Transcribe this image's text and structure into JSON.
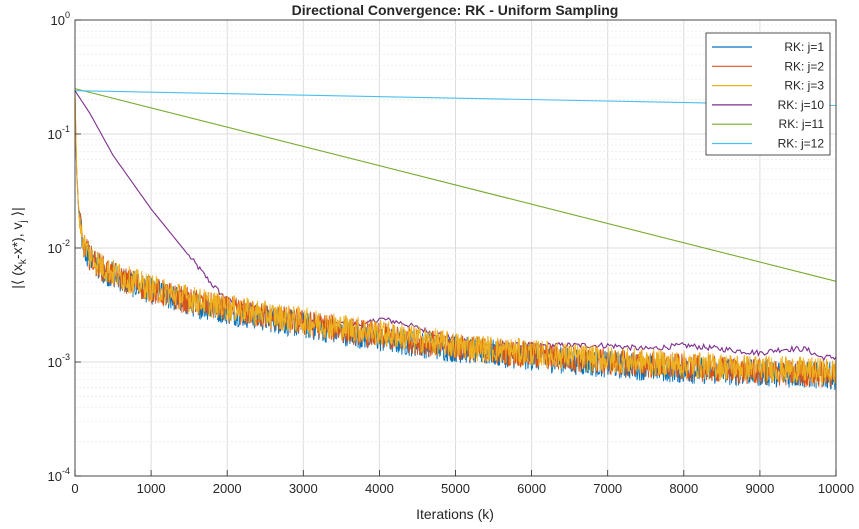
{
  "chart_data": {
    "type": "line",
    "title": "Directional Convergence: RK - Uniform Sampling",
    "xlabel": "Iterations (k)",
    "ylabel_parts": [
      "|⟨ (x",
      "k",
      "-x*), v",
      "j",
      " ⟩|"
    ],
    "xlim": [
      0,
      10000
    ],
    "ylim": [
      0.0001,
      1
    ],
    "yscale": "log",
    "grid": true,
    "legend_position": "top-right",
    "x_ticks": [
      "0",
      "1000",
      "2000",
      "3000",
      "4000",
      "5000",
      "6000",
      "7000",
      "8000",
      "9000",
      "10000"
    ],
    "y_ticks": [
      {
        "base": "10",
        "exp": "0",
        "value": 1
      },
      {
        "base": "10",
        "exp": "-1",
        "value": 0.1
      },
      {
        "base": "10",
        "exp": "-2",
        "value": 0.01
      },
      {
        "base": "10",
        "exp": "-3",
        "value": 0.001
      },
      {
        "base": "10",
        "exp": "-4",
        "value": 0.0001
      }
    ],
    "series": [
      {
        "name": "RK: j=1",
        "color": "#0072BD",
        "x": [
          0,
          20,
          50,
          100,
          200,
          400,
          700,
          1000,
          1500,
          2000,
          3000,
          4000,
          5000,
          6000,
          7000,
          8000,
          9000,
          10000
        ],
        "y": [
          0.2,
          0.05,
          0.02,
          0.011,
          0.008,
          0.0062,
          0.005,
          0.0042,
          0.0033,
          0.0028,
          0.0021,
          0.0016,
          0.0013,
          0.0011,
          0.00095,
          0.00085,
          0.0008,
          0.00075
        ]
      },
      {
        "name": "RK: j=2",
        "color": "#D95319",
        "x": [
          0,
          20,
          50,
          100,
          200,
          400,
          700,
          1000,
          1500,
          2000,
          3000,
          4000,
          5000,
          6000,
          7000,
          8000,
          9000,
          10000
        ],
        "y": [
          0.22,
          0.05,
          0.02,
          0.011,
          0.0082,
          0.0063,
          0.0051,
          0.0043,
          0.0034,
          0.0029,
          0.0022,
          0.0017,
          0.00135,
          0.00115,
          0.001,
          0.0009,
          0.00082,
          0.00077
        ]
      },
      {
        "name": "RK: j=3",
        "color": "#EDB120",
        "x": [
          0,
          20,
          50,
          100,
          200,
          400,
          700,
          1000,
          1500,
          2000,
          3000,
          4000,
          5000,
          6000,
          7000,
          8000,
          9000,
          10000
        ],
        "y": [
          0.24,
          0.055,
          0.021,
          0.0115,
          0.0085,
          0.0065,
          0.0053,
          0.0045,
          0.0036,
          0.003,
          0.0023,
          0.0018,
          0.0014,
          0.0012,
          0.00105,
          0.00095,
          0.00088,
          0.00082
        ]
      },
      {
        "name": "RK: j=10",
        "color": "#7E2F8E",
        "x": [
          0,
          200,
          500,
          1000,
          1500,
          1800,
          2000,
          2300,
          2600,
          3000,
          3500,
          3800,
          4000,
          4300,
          4700,
          5000,
          5500,
          6000,
          6500,
          7000,
          7500,
          8000,
          8500,
          9000,
          9300,
          9600,
          9800,
          10000
        ],
        "y": [
          0.24,
          0.15,
          0.065,
          0.022,
          0.0085,
          0.0048,
          0.0035,
          0.003,
          0.0027,
          0.0022,
          0.0022,
          0.0021,
          0.0024,
          0.0022,
          0.0018,
          0.0016,
          0.0014,
          0.0014,
          0.0014,
          0.0014,
          0.0013,
          0.0014,
          0.0013,
          0.0012,
          0.0013,
          0.0013,
          0.0011,
          0.0011
        ]
      },
      {
        "name": "RK: j=11",
        "color": "#77AC30",
        "x": [
          0,
          10000
        ],
        "y": [
          0.25,
          0.0051
        ]
      },
      {
        "name": "RK: j=12",
        "color": "#4DBEEE",
        "x": [
          0,
          10000
        ],
        "y": [
          0.24,
          0.178
        ]
      }
    ]
  }
}
